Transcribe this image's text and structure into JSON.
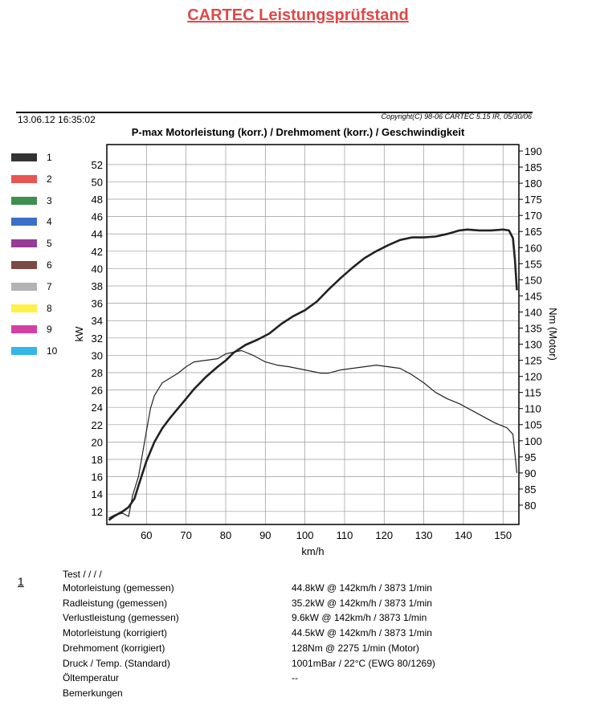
{
  "header": {
    "title": "CARTEC Leistungsprüfstand",
    "date": "13.06.12 16:35:02",
    "copyright": "Copyright(C) 98-06 CARTEC 5.15 IR, 05/30/06"
  },
  "legend": [
    {
      "label": "1",
      "color": "#333333"
    },
    {
      "label": "2",
      "color": "#e85555"
    },
    {
      "label": "3",
      "color": "#3f8f4f"
    },
    {
      "label": "4",
      "color": "#3c6fc8"
    },
    {
      "label": "5",
      "color": "#963c96"
    },
    {
      "label": "6",
      "color": "#7b4a44"
    },
    {
      "label": "7",
      "color": "#b3b3b3"
    },
    {
      "label": "8",
      "color": "#fff04a"
    },
    {
      "label": "9",
      "color": "#d43fa3"
    },
    {
      "label": "10",
      "color": "#35b6e8"
    }
  ],
  "chart_data": {
    "type": "line",
    "title": "P-max Motorleistung (korr.) / Drehmoment (korr.) / Geschwindigkeit",
    "xlabel": "km/h",
    "ylabel": "kW",
    "y2label": "Nm (Motor)",
    "xlim": [
      50,
      154
    ],
    "ylim": [
      10.5,
      54.3
    ],
    "y2lim": [
      74,
      192
    ],
    "xticks": [
      60,
      70,
      80,
      90,
      100,
      110,
      120,
      130,
      140,
      150
    ],
    "yticks": [
      12,
      14,
      16,
      18,
      20,
      22,
      24,
      26,
      28,
      30,
      32,
      34,
      36,
      38,
      40,
      42,
      44,
      46,
      48,
      50,
      52
    ],
    "y2ticks": [
      80,
      85,
      90,
      95,
      100,
      105,
      110,
      115,
      120,
      125,
      130,
      135,
      140,
      145,
      150,
      155,
      160,
      165,
      170,
      175,
      180,
      185,
      190
    ],
    "grid": true,
    "series": [
      {
        "name": "Motorleistung (korr.)",
        "axis": "kW",
        "x": [
          50.5,
          52,
          54,
          55.5,
          57,
          58,
          60,
          62,
          64,
          66,
          68,
          70,
          72,
          75,
          78,
          80,
          82,
          85,
          88,
          91,
          94,
          97,
          100,
          103,
          106,
          109,
          112,
          115,
          118,
          121,
          124,
          127,
          130,
          133,
          136,
          139,
          141,
          144,
          147,
          150,
          151.5,
          152.5,
          153,
          153.5
        ],
        "values": [
          11,
          11.5,
          12.0,
          12.5,
          13.5,
          15.0,
          17.8,
          20.0,
          21.6,
          22.8,
          23.9,
          25.0,
          26.1,
          27.5,
          28.7,
          29.4,
          30.3,
          31.2,
          31.8,
          32.5,
          33.6,
          34.5,
          35.2,
          36.2,
          37.6,
          38.9,
          40.1,
          41.2,
          42.0,
          42.7,
          43.3,
          43.6,
          43.6,
          43.7,
          44.0,
          44.4,
          44.5,
          44.4,
          44.4,
          44.5,
          44.4,
          43.5,
          41.0,
          37.5
        ]
      },
      {
        "name": "Drehmoment (korr.)",
        "axis": "Nm",
        "x": [
          50.5,
          52,
          54,
          55.5,
          56.5,
          58,
          59,
          60,
          61,
          62,
          63,
          64,
          66,
          68,
          70,
          72,
          75,
          78,
          80,
          82,
          84,
          85,
          87,
          90,
          93,
          96,
          100,
          104,
          106,
          109,
          112,
          115,
          118,
          121,
          124,
          127,
          130,
          133,
          136,
          139,
          142,
          145,
          148,
          151,
          152.5,
          153.5
        ],
        "values": [
          76,
          77,
          77.5,
          76.5,
          83,
          89,
          96,
          103,
          110,
          114,
          116,
          118,
          119.5,
          121,
          123,
          124.5,
          125,
          125.5,
          127,
          127.5,
          128,
          127.5,
          126.5,
          124.5,
          123.5,
          123,
          122,
          121,
          121,
          122,
          122.5,
          123,
          123.5,
          123,
          122.5,
          120.5,
          118,
          115,
          113,
          111.5,
          109.5,
          107.5,
          105.5,
          104,
          102,
          90
        ]
      }
    ]
  },
  "results": {
    "test_number": "1",
    "test_label": "Test /  /  /  /",
    "rows": [
      {
        "label": "Motorleistung (gemessen)",
        "value": "44.8kW @ 142km/h / 3873 1/min"
      },
      {
        "label": "Radleistung (gemessen)",
        "value": "35.2kW @ 142km/h / 3873 1/min"
      },
      {
        "label": "Verlustleistung (gemessen)",
        "value": "9.6kW @ 142km/h / 3873 1/min"
      },
      {
        "label": "Motorleistung (korrigiert)",
        "value": "44.5kW @ 142km/h / 3873 1/min"
      },
      {
        "label": "Drehmoment (korrigiert)",
        "value": "128Nm @ 2275 1/min (Motor)"
      },
      {
        "label": "Druck / Temp. (Standard)",
        "value": "1001mBar / 22°C   (EWG 80/1269)"
      },
      {
        "label": "Öltemperatur",
        "value": "--"
      },
      {
        "label": "Bemerkungen",
        "value": ""
      }
    ]
  }
}
